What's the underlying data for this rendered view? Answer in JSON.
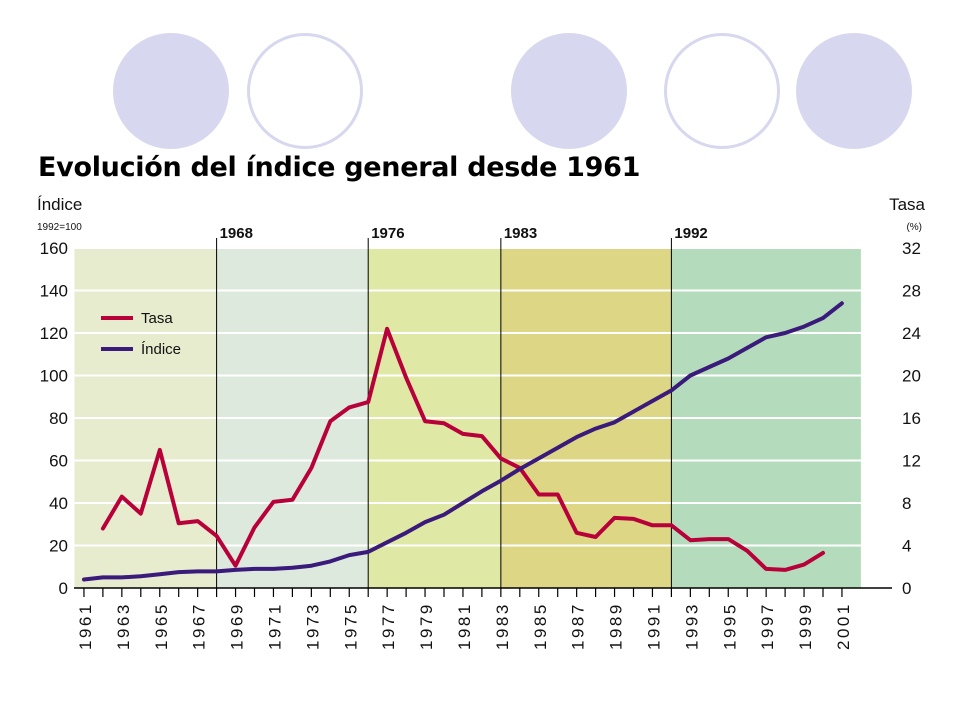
{
  "chart_data": {
    "type": "line",
    "title": "Evolución del índice general desde 1961",
    "left_axis": {
      "label": "Índice",
      "sublabel": "1992=100",
      "min": 0,
      "max": 160,
      "ticks": [
        0,
        20,
        40,
        60,
        80,
        100,
        120,
        140,
        160
      ]
    },
    "right_axis": {
      "label": "Tasa",
      "sublabel": "(%)",
      "min": 0,
      "max": 32,
      "ticks": [
        0,
        4,
        8,
        12,
        16,
        20,
        24,
        28,
        32
      ]
    },
    "x_range": [
      1960.5,
      2002
    ],
    "x_tick_labels": [
      "1961",
      "1963",
      "1965",
      "1967",
      "1969",
      "1971",
      "1973",
      "1975",
      "1977",
      "1979",
      "1981",
      "1983",
      "1985",
      "1987",
      "1989",
      "1991",
      "1993",
      "1995",
      "1997",
      "1999",
      "2001"
    ],
    "periods": [
      {
        "label": "",
        "start": 1960.5,
        "end": 1968,
        "color": "#e6eccd"
      },
      {
        "label": "1968",
        "start": 1968,
        "end": 1976,
        "color": "#dde9dc"
      },
      {
        "label": "1976",
        "start": 1976,
        "end": 1983,
        "color": "#dfe9a5"
      },
      {
        "label": "1983",
        "start": 1983,
        "end": 1992,
        "color": "#ddd684"
      },
      {
        "label": "1992",
        "start": 1992,
        "end": 2002,
        "color": "#b4dcbc"
      }
    ],
    "grid": true,
    "legend_position": "top-left",
    "series": [
      {
        "name": "Tasa",
        "axis": "right",
        "color": "#b8003a",
        "x": [
          1962,
          1963,
          1964,
          1965,
          1966,
          1967,
          1968,
          1969,
          1970,
          1971,
          1972,
          1973,
          1974,
          1975,
          1976,
          1977,
          1978,
          1979,
          1980,
          1981,
          1982,
          1983,
          1984,
          1985,
          1986,
          1987,
          1988,
          1989,
          1990,
          1991,
          1992,
          1993,
          1994,
          1995,
          1996,
          1997,
          1998,
          1999,
          2000
        ],
        "values": [
          5.6,
          8.6,
          7.0,
          13.0,
          6.1,
          6.3,
          4.9,
          2.1,
          5.7,
          8.1,
          8.3,
          11.3,
          15.7,
          17.0,
          17.5,
          24.4,
          19.8,
          15.7,
          15.5,
          14.5,
          14.3,
          12.2,
          11.3,
          8.8,
          8.8,
          5.2,
          4.8,
          6.6,
          6.5,
          5.9,
          5.9,
          4.5,
          4.6,
          4.6,
          3.5,
          1.8,
          1.7,
          2.2,
          3.3
        ]
      },
      {
        "name": "Índice",
        "axis": "left",
        "color": "#3a1a7a",
        "x": [
          1961,
          1962,
          1963,
          1964,
          1965,
          1966,
          1967,
          1968,
          1969,
          1970,
          1971,
          1972,
          1973,
          1974,
          1975,
          1976,
          1977,
          1978,
          1979,
          1980,
          1981,
          1982,
          1983,
          1984,
          1985,
          1986,
          1987,
          1988,
          1989,
          1990,
          1991,
          1992,
          1993,
          1994,
          1995,
          1996,
          1997,
          1998,
          1999,
          2000,
          2001
        ],
        "values": [
          4,
          5,
          5,
          5.5,
          6.5,
          7.5,
          7.8,
          7.8,
          8.5,
          9,
          9,
          9.5,
          10.5,
          12.5,
          15.5,
          17,
          21.5,
          26,
          31,
          34.5,
          40,
          45.5,
          50.5,
          56,
          61,
          66,
          71,
          75,
          78,
          83,
          88,
          93,
          100,
          104,
          108,
          113,
          118,
          120,
          123,
          127,
          134
        ]
      }
    ]
  }
}
